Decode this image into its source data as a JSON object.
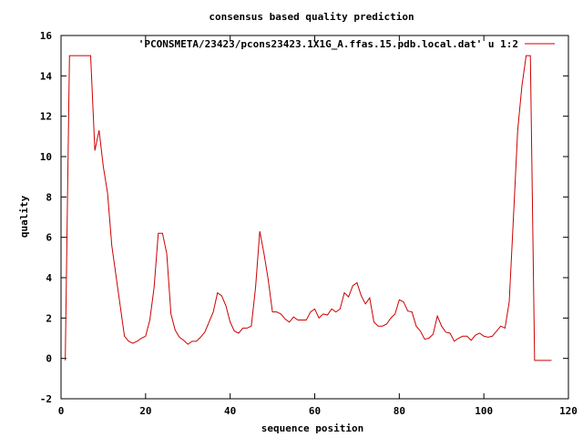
{
  "chart_data": {
    "type": "line",
    "title": "consensus based quality prediction",
    "xlabel": "sequence position",
    "ylabel": "quality",
    "xlim": [
      0,
      120
    ],
    "ylim": [
      -2,
      16
    ],
    "xticks": [
      0,
      20,
      40,
      60,
      80,
      100,
      120
    ],
    "yticks": [
      -2,
      0,
      2,
      4,
      6,
      8,
      10,
      12,
      14,
      16
    ],
    "grid": false,
    "legend_position": "top-right",
    "series": [
      {
        "name": "'PCONSMETA/23423/pcons23423.1X1G_A.ffas.15.pdb.local.dat' u 1:2",
        "color": "#cc0000",
        "x": [
          1,
          2,
          3,
          4,
          5,
          6,
          7,
          8,
          9,
          10,
          11,
          12,
          13,
          14,
          15,
          16,
          17,
          18,
          19,
          20,
          21,
          22,
          23,
          24,
          25,
          26,
          27,
          28,
          29,
          30,
          31,
          32,
          33,
          34,
          35,
          36,
          37,
          38,
          39,
          40,
          41,
          42,
          43,
          44,
          45,
          46,
          47,
          48,
          49,
          50,
          51,
          52,
          53,
          54,
          55,
          56,
          57,
          58,
          59,
          60,
          61,
          62,
          63,
          64,
          65,
          66,
          67,
          68,
          69,
          70,
          71,
          72,
          73,
          74,
          75,
          76,
          77,
          78,
          79,
          80,
          81,
          82,
          83,
          84,
          85,
          86,
          87,
          88,
          89,
          90,
          91,
          92,
          93,
          94,
          95,
          96,
          97,
          98,
          99,
          100,
          101,
          102,
          103,
          104,
          105,
          106,
          107,
          108,
          109,
          110,
          111,
          112,
          113,
          114,
          115,
          116
        ],
        "y": [
          -0.1,
          15,
          15,
          15,
          15,
          15,
          15,
          10.3,
          11.3,
          9.5,
          8.2,
          5.6,
          4.1,
          2.6,
          1.1,
          0.85,
          0.75,
          0.85,
          1.0,
          1.1,
          1.9,
          3.5,
          6.2,
          6.2,
          5.2,
          2.2,
          1.4,
          1.05,
          0.9,
          0.7,
          0.85,
          0.85,
          1.05,
          1.3,
          1.8,
          2.3,
          3.25,
          3.1,
          2.6,
          1.8,
          1.35,
          1.25,
          1.5,
          1.5,
          1.6,
          3.5,
          6.3,
          5.2,
          3.9,
          2.3,
          2.3,
          2.2,
          1.95,
          1.8,
          2.05,
          1.9,
          1.9,
          1.9,
          2.3,
          2.45,
          2.0,
          2.2,
          2.15,
          2.45,
          2.3,
          2.45,
          3.25,
          3.05,
          3.6,
          3.75,
          3.1,
          2.7,
          3.0,
          1.8,
          1.6,
          1.6,
          1.7,
          2.0,
          2.2,
          2.9,
          2.8,
          2.35,
          2.3,
          1.6,
          1.35,
          0.95,
          1.0,
          1.2,
          2.1,
          1.6,
          1.3,
          1.25,
          0.85,
          1.0,
          1.1,
          1.1,
          0.9,
          1.15,
          1.25,
          1.1,
          1.05,
          1.1,
          1.35,
          1.6,
          1.5,
          2.8,
          7.0,
          11.3,
          13.5,
          15,
          15,
          -0.1,
          -0.1,
          -0.1,
          -0.1,
          -0.1
        ]
      }
    ]
  }
}
